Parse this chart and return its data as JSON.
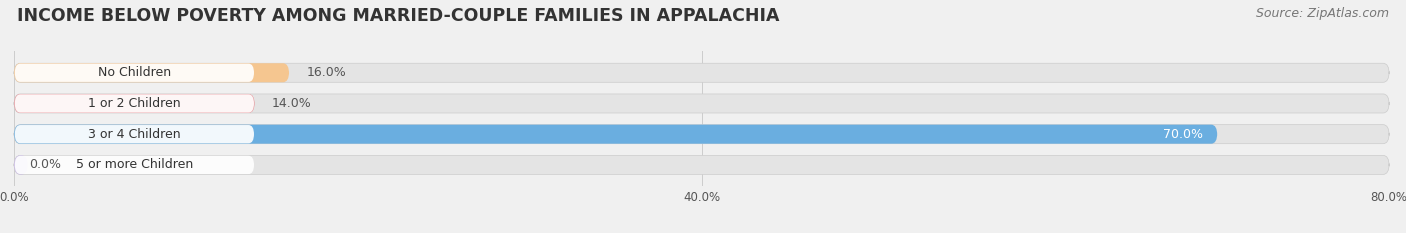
{
  "title": "INCOME BELOW POVERTY AMONG MARRIED-COUPLE FAMILIES IN APPALACHIA",
  "source": "Source: ZipAtlas.com",
  "categories": [
    "No Children",
    "1 or 2 Children",
    "3 or 4 Children",
    "5 or more Children"
  ],
  "values": [
    16.0,
    14.0,
    70.0,
    0.0
  ],
  "bar_colors": [
    "#f5c690",
    "#e8969b",
    "#6aaee0",
    "#c9b8e8"
  ],
  "label_colors": [
    "#555555",
    "#555555",
    "#ffffff",
    "#555555"
  ],
  "background_color": "#f0f0f0",
  "bar_bg_color": "#e4e4e4",
  "xlim": [
    0,
    80
  ],
  "xticks": [
    0.0,
    40.0,
    80.0
  ],
  "xtick_labels": [
    "0.0%",
    "40.0%",
    "80.0%"
  ],
  "title_fontsize": 12.5,
  "source_fontsize": 9,
  "bar_height": 0.62,
  "label_fontsize": 9,
  "category_fontsize": 9,
  "value_label_threshold": 50
}
